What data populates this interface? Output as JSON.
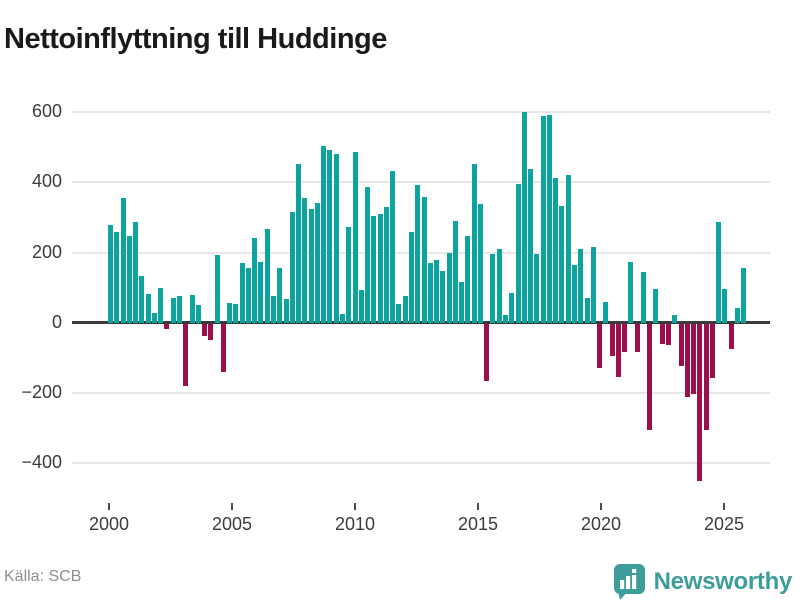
{
  "title": "Nettoinflyttning till Huddinge",
  "source": "Källa: SCB",
  "branding": {
    "wordmark": "Newsworthy",
    "icon": "newsworthy-bubble-barchart-icon"
  },
  "colors": {
    "positive_bar": "#0da49f",
    "negative_bar": "#9c0f4a",
    "brand_teal": "#3d9d9b",
    "grid": "#e7e7e7",
    "axis": "#3a3a3a",
    "text_dark": "#1a1a1a",
    "text_tick": "#3c3c3c",
    "text_source": "#8e8e8e"
  },
  "chart_data": {
    "type": "bar",
    "title": "Nettoinflyttning till Huddinge",
    "xlabel": "",
    "ylabel": "",
    "ylim": [
      -500,
      660
    ],
    "grid": "horizontal",
    "legend": "none",
    "yticks": [
      {
        "value": 600,
        "label": "600"
      },
      {
        "value": 400,
        "label": "400"
      },
      {
        "value": 200,
        "label": "200"
      },
      {
        "value": 0,
        "label": "0"
      },
      {
        "value": -200,
        "label": "−200"
      },
      {
        "value": -400,
        "label": "−400"
      }
    ],
    "xticks": [
      {
        "year": 2000,
        "label": "2000"
      },
      {
        "year": 2005,
        "label": "2005"
      },
      {
        "year": 2010,
        "label": "2010"
      },
      {
        "year": 2015,
        "label": "2015"
      },
      {
        "year": 2020,
        "label": "2020"
      },
      {
        "year": 2025,
        "label": "2025"
      }
    ],
    "x": [
      "2000K1",
      "2000K2",
      "2000K3",
      "2000K4",
      "2001K1",
      "2001K2",
      "2001K3",
      "2001K4",
      "2002K1",
      "2002K2",
      "2002K3",
      "2002K4",
      "2003K1",
      "2003K2",
      "2003K3",
      "2003K4",
      "2004K1",
      "2004K2",
      "2004K3",
      "2004K4",
      "2005K1",
      "2005K2",
      "2005K3",
      "2005K4",
      "2006K1",
      "2006K2",
      "2006K3",
      "2006K4",
      "2007K1",
      "2007K2",
      "2007K3",
      "2007K4",
      "2008K1",
      "2008K2",
      "2008K3",
      "2008K4",
      "2009K1",
      "2009K2",
      "2009K3",
      "2009K4",
      "2010K1",
      "2010K2",
      "2010K3",
      "2010K4",
      "2011K1",
      "2011K2",
      "2011K3",
      "2011K4",
      "2012K1",
      "2012K2",
      "2012K3",
      "2012K4",
      "2013K1",
      "2013K2",
      "2013K3",
      "2013K4",
      "2014K1",
      "2014K2",
      "2014K3",
      "2014K4",
      "2015K1",
      "2015K2",
      "2015K3",
      "2015K4",
      "2016K1",
      "2016K2",
      "2016K3",
      "2016K4",
      "2017K1",
      "2017K2",
      "2017K3",
      "2017K4",
      "2018K1",
      "2018K2",
      "2018K3",
      "2018K4",
      "2019K1",
      "2019K2",
      "2019K3",
      "2019K4",
      "2020K1",
      "2020K2",
      "2020K3",
      "2020K4",
      "2021K1",
      "2021K2",
      "2021K3",
      "2021K4",
      "2022K1",
      "2022K2",
      "2022K3",
      "2022K4",
      "2023K1",
      "2023K2",
      "2023K3",
      "2023K4",
      "2024K1",
      "2024K2",
      "2024K3",
      "2024K4",
      "2025K1",
      "2025K2"
    ],
    "values": [
      278,
      259,
      355,
      248,
      288,
      134,
      83,
      28,
      98,
      -14,
      69,
      77,
      -176,
      80,
      50,
      -35,
      -46,
      193,
      -136,
      55,
      52,
      170,
      155,
      240,
      174,
      268,
      75,
      155,
      68,
      315,
      453,
      354,
      325,
      340,
      504,
      493,
      480,
      25,
      274,
      487,
      92,
      388,
      305,
      310,
      331,
      432,
      52,
      75,
      258,
      392,
      357,
      171,
      180,
      147,
      200,
      289,
      115,
      247,
      453,
      338,
      -162,
      197,
      209,
      21,
      84,
      394,
      601,
      437,
      197,
      590,
      593,
      411,
      333,
      420,
      165,
      210,
      70,
      215,
      -124,
      58,
      -92,
      -150,
      -78,
      172,
      -80,
      144,
      -302,
      96,
      -56,
      -60,
      21,
      -120,
      -207,
      -199,
      -446,
      -302,
      -152,
      288,
      96,
      -70,
      42,
      155
    ]
  }
}
